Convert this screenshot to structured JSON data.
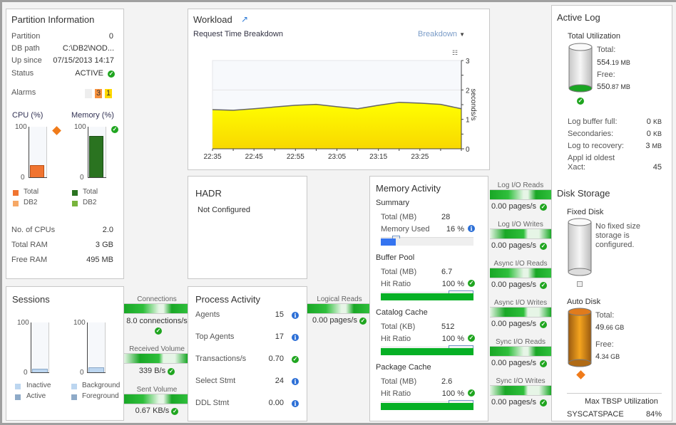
{
  "partition": {
    "title": "Partition Information",
    "rows": [
      {
        "label": "Partition",
        "value": "0"
      },
      {
        "label": "DB path",
        "value": "C:\\DB2\\NOD..."
      },
      {
        "label": "Up since",
        "value": "07/15/2013 14:17"
      },
      {
        "label": "Status",
        "value": "ACTIVE"
      }
    ],
    "alarms_label": "Alarms",
    "alarm_orange": "3",
    "alarm_yellow": "1",
    "cpu_title": "CPU (%)",
    "mem_title": "Memory (%)",
    "tick_100": "100",
    "tick_0": "0",
    "cpu_value": 26,
    "mem_value": 85,
    "cpu_legend": [
      "Total",
      "DB2"
    ],
    "mem_legend": [
      "Total",
      "DB2"
    ],
    "stats": [
      {
        "label": "No. of CPUs",
        "value": "2.0"
      },
      {
        "label": "Total RAM",
        "value": "3 GB"
      },
      {
        "label": "Free RAM",
        "value": "495 MB"
      }
    ]
  },
  "workload": {
    "title": "Workload",
    "subtitle": "Request Time Breakdown",
    "dropdown": "Breakdown"
  },
  "chart_data": {
    "type": "area",
    "x": [
      "22:35",
      "22:40",
      "22:45",
      "22:50",
      "22:55",
      "23:00",
      "23:05",
      "23:10",
      "23:15",
      "23:20",
      "23:25",
      "23:30",
      "23:35"
    ],
    "values": [
      1.33,
      1.31,
      1.36,
      1.42,
      1.48,
      1.51,
      1.43,
      1.36,
      1.48,
      1.58,
      1.55,
      1.51,
      1.36
    ],
    "xticks": [
      "22:35",
      "22:45",
      "22:55",
      "23:05",
      "23:15",
      "23:25"
    ],
    "yticks": [
      "0",
      "1",
      "2",
      "3"
    ],
    "ylim": [
      0,
      3
    ],
    "ylabel": "seconds/s",
    "color": "#ffee00"
  },
  "hadr": {
    "title": "HADR",
    "status": "Not Configured"
  },
  "sessions": {
    "title": "Sessions",
    "tick_100": "100",
    "tick_0": "0",
    "left_value": 8,
    "right_value": 12,
    "legend_left": [
      "Inactive",
      "Active"
    ],
    "legend_right": [
      "Background",
      "Foreground"
    ]
  },
  "connectors_left": [
    {
      "label": "Connections",
      "value": "8.0 connections/s"
    },
    {
      "label": "Received Volume",
      "value": "339 B/s"
    },
    {
      "label": "Sent Volume",
      "value": "0.67 KB/s"
    }
  ],
  "process": {
    "title": "Process Activity",
    "rows": [
      {
        "label": "Agents",
        "value": "15",
        "icon": "info"
      },
      {
        "label": "Top Agents",
        "value": "17",
        "icon": "info"
      },
      {
        "label": "Transactions/s",
        "value": "0.70",
        "icon": "ok"
      },
      {
        "label": "Select Stmt",
        "value": "24",
        "icon": "info"
      },
      {
        "label": "DDL Stmt",
        "value": "0.00",
        "icon": "info"
      }
    ]
  },
  "logical_reads": {
    "label": "Logical Reads",
    "value": "0.00 pages/s"
  },
  "memory": {
    "title": "Memory Activity",
    "summary": {
      "title": "Summary",
      "total_label": "Total (MB)",
      "total": "28",
      "used_label": "Memory Used",
      "used": "16 %",
      "used_pct": 16
    },
    "buffer": {
      "title": "Buffer Pool",
      "total_label": "Total (MB)",
      "total": "6.7",
      "hit_label": "Hit Ratio",
      "hit": "100 %",
      "hit_pct": 100
    },
    "catalog": {
      "title": "Catalog Cache",
      "total_label": "Total (KB)",
      "total": "512",
      "hit_label": "Hit Ratio",
      "hit": "100 %",
      "hit_pct": 100
    },
    "package": {
      "title": "Package Cache",
      "total_label": "Total (MB)",
      "total": "2.6",
      "hit_label": "Hit Ratio",
      "hit": "100 %",
      "hit_pct": 100
    }
  },
  "io": [
    {
      "label": "Log I/O Reads",
      "value": "0.00 pages/s"
    },
    {
      "label": "Log I/O Writes",
      "value": "0.00 pages/s"
    },
    {
      "label": "Async I/O Reads",
      "value": "0.00 pages/s"
    },
    {
      "label": "Async I/O Writes",
      "value": "0.00 pages/s"
    },
    {
      "label": "Sync I/O Reads",
      "value": "0.00 pages/s"
    },
    {
      "label": "Sync I/O Writes",
      "value": "0.00 pages/s"
    }
  ],
  "active_log": {
    "title": "Active Log",
    "util_title": "Total Utilization",
    "total_label": "Total:",
    "total_int": "554",
    "total_dec": ".19 MB",
    "free_label": "Free:",
    "free_int": "550",
    "free_dec": ".87 MB",
    "rows": [
      {
        "label": "Log buffer full:",
        "value": "0",
        "unit": "KB"
      },
      {
        "label": "Secondaries:",
        "value": "0",
        "unit": "KB"
      },
      {
        "label": "Log to recovery:",
        "value": "3",
        "unit": "MB"
      }
    ],
    "appl_label1": "Appl id oldest",
    "appl_label2": "Xact:",
    "appl_value": "45"
  },
  "disk": {
    "title": "Disk Storage",
    "fixed_title": "Fixed Disk",
    "fixed_msg": "No fixed size storage is configured.",
    "auto_title": "Auto Disk",
    "total_label": "Total:",
    "total_int": "49",
    "total_dec": ".66 GB",
    "free_label": "Free:",
    "free_int": "4",
    "free_dec": ".34 GB",
    "tbsp_title": "Max TBSP Utilization",
    "tbsp_name": "SYSCATSPACE",
    "tbsp_value": "84%"
  }
}
